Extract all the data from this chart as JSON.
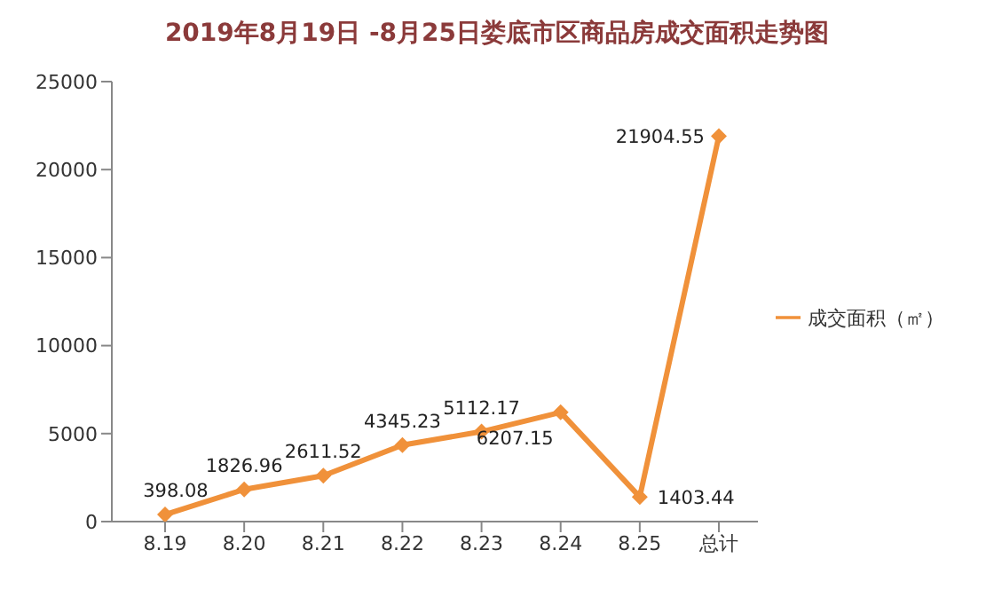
{
  "chart_data": {
    "type": "line",
    "title": "2019年8月19日 -8月25日娄底市区商品房成交面积走势图",
    "categories": [
      "8.19",
      "8.20",
      "8.21",
      "8.22",
      "8.23",
      "8.24",
      "8.25",
      "总计"
    ],
    "series": [
      {
        "name": "成交面积（㎡）",
        "color": "#f0913a",
        "values": [
          398.08,
          1826.96,
          2611.52,
          4345.23,
          5112.17,
          6207.15,
          1403.44,
          21904.55
        ]
      }
    ],
    "ylim": [
      0,
      25000
    ],
    "yticks": [
      0,
      5000,
      10000,
      15000,
      20000,
      25000
    ],
    "grid": false,
    "legend": "right",
    "marker": "diamond",
    "data_labels": true
  }
}
